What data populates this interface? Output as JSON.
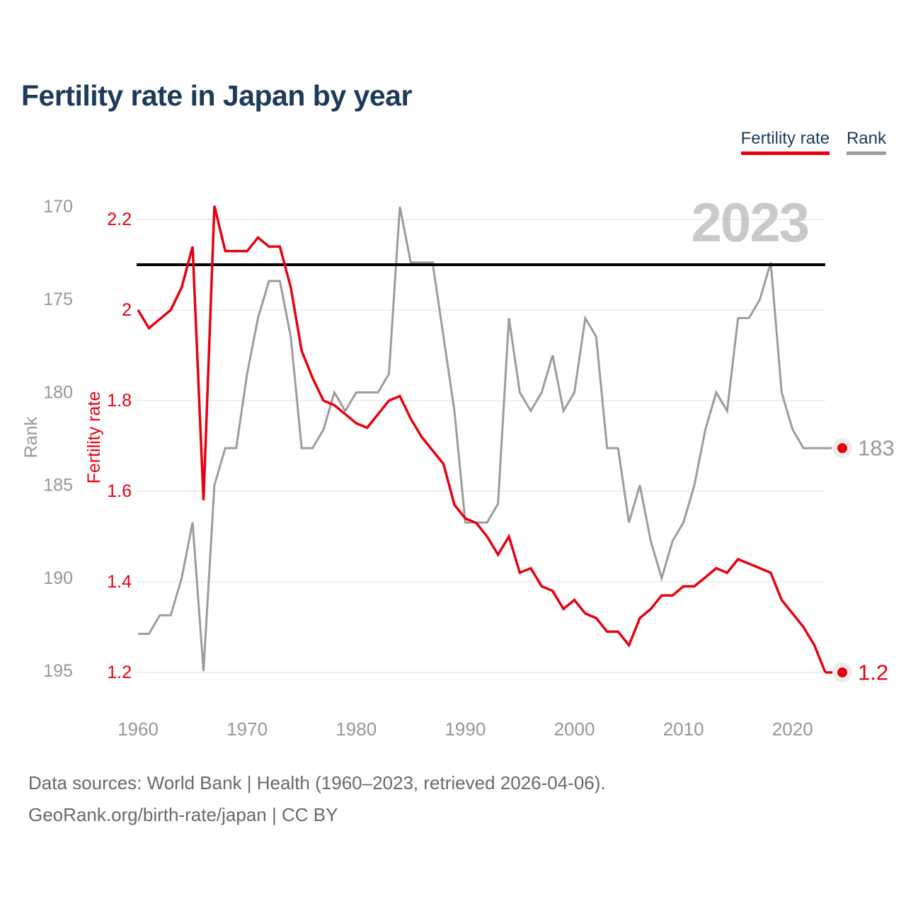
{
  "header": {
    "title": "Fertility rate in Japan by year"
  },
  "legend": {
    "items": [
      {
        "label": "Fertility rate",
        "series": "fertility",
        "color": "#e8000f"
      },
      {
        "label": "Rank",
        "series": "rank",
        "color": "#9c9c9c"
      }
    ]
  },
  "watermark": {
    "text": "2023"
  },
  "footer": {
    "line1": "Data sources: World Bank | Health (1960–2023, retrieved 2026-04-06).",
    "line2": "GeoRank.org/birth-rate/japan | CC BY"
  },
  "colors": {
    "fertility": "#e8000f",
    "rank": "#9c9c9c",
    "title": "#1d3a5a",
    "watermark": "#c9c9c9",
    "grid": "#efefef",
    "axis_text": "#979797",
    "reference_line": "#000000",
    "dot_halo": "#ececec",
    "source_text": "#696969"
  },
  "chart_data": {
    "type": "line",
    "title": "Fertility rate in Japan by year",
    "grid": "horizontal",
    "legend_position": "top-right",
    "selected_year": "2023",
    "years": [
      1960,
      1961,
      1962,
      1963,
      1964,
      1965,
      1966,
      1967,
      1968,
      1969,
      1970,
      1971,
      1972,
      1973,
      1974,
      1975,
      1976,
      1977,
      1978,
      1979,
      1980,
      1981,
      1982,
      1983,
      1984,
      1985,
      1986,
      1987,
      1988,
      1989,
      1990,
      1991,
      1992,
      1993,
      1994,
      1995,
      1996,
      1997,
      1998,
      1999,
      2000,
      2001,
      2002,
      2003,
      2004,
      2005,
      2006,
      2007,
      2008,
      2009,
      2010,
      2011,
      2012,
      2013,
      2014,
      2015,
      2016,
      2017,
      2018,
      2019,
      2020,
      2021,
      2022,
      2023
    ],
    "series": [
      {
        "name": "Fertility rate",
        "axis": "fertility",
        "color": "#e8000f",
        "values": [
          2.0,
          1.96,
          1.98,
          2.0,
          2.05,
          2.14,
          1.58,
          2.23,
          2.13,
          2.13,
          2.13,
          2.16,
          2.14,
          2.14,
          2.05,
          1.91,
          1.85,
          1.8,
          1.79,
          1.77,
          1.75,
          1.74,
          1.77,
          1.8,
          1.81,
          1.76,
          1.72,
          1.69,
          1.66,
          1.57,
          1.54,
          1.53,
          1.5,
          1.46,
          1.5,
          1.42,
          1.43,
          1.39,
          1.38,
          1.34,
          1.36,
          1.33,
          1.32,
          1.29,
          1.29,
          1.26,
          1.32,
          1.34,
          1.37,
          1.37,
          1.39,
          1.39,
          1.41,
          1.43,
          1.42,
          1.45,
          1.44,
          1.43,
          1.42,
          1.36,
          1.33,
          1.3,
          1.26,
          1.2
        ]
      },
      {
        "name": "Rank",
        "axis": "rank",
        "color": "#9c9c9c",
        "values": [
          193,
          193,
          192,
          192,
          190,
          187,
          195,
          185,
          183,
          183,
          179,
          176,
          174,
          174,
          177,
          183,
          183,
          182,
          180,
          181,
          180,
          180,
          180,
          179,
          170,
          173,
          173,
          173,
          177,
          181,
          187,
          187,
          187,
          186,
          176,
          180,
          181,
          180,
          178,
          181,
          180,
          176,
          177,
          183,
          183,
          187,
          185,
          188,
          190,
          188,
          187,
          185,
          182,
          180,
          181,
          176,
          176,
          175,
          173,
          180,
          182,
          183,
          183,
          183
        ]
      }
    ],
    "fertility_axis": {
      "label": "Fertility rate",
      "ticks": [
        2.2,
        2,
        1.8,
        1.6,
        1.4,
        1.2
      ],
      "min": 1.2,
      "max": 2.2
    },
    "rank_axis": {
      "label": "Rank",
      "ticks": [
        170,
        175,
        180,
        185,
        190,
        195
      ],
      "min": 170,
      "max": 195,
      "inverted": true
    },
    "x_ticks": [
      1960,
      1970,
      1980,
      1990,
      2000,
      2010,
      2020
    ],
    "reference_line": {
      "axis": "fertility",
      "value": 2.1
    },
    "end_labels": {
      "fertility": "1.2",
      "rank": "183"
    }
  }
}
